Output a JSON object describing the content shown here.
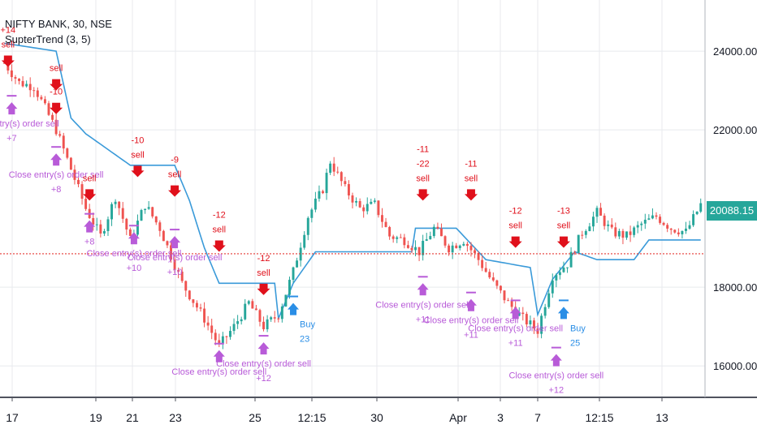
{
  "legend": {
    "symbol_line": "NIFTY BANK, 30, NSE",
    "indicator_line": "SupterTrend (3, 5)"
  },
  "last_price_label": "20088.15",
  "colors": {
    "up": "#26a69a",
    "down": "#ef5350",
    "supertrend": "#3a9ad9",
    "strategy_sell": "#e0101b",
    "strategy_close": "#b85bd8",
    "strategy_buy": "#2a8ee6",
    "grid": "#e8eaee",
    "axis_text": "#131722",
    "price_badge": "#26a69a"
  },
  "chart_data": {
    "type": "candlestick",
    "title": "NIFTY BANK, 30, NSE",
    "indicator": "SupterTrend (3, 5)",
    "ylim": [
      15200,
      25300
    ],
    "y_ticks": [
      "24000.00",
      "22000.00",
      "18000.00",
      "16000.00"
    ],
    "x_tick_labels": [
      "17",
      "19",
      "21",
      "23",
      "25",
      "12:15",
      "30",
      "Apr",
      "3",
      "7",
      "12:15",
      "13"
    ],
    "last_price": 20088.15,
    "current_price_line": 18850,
    "price_keypoints": [
      {
        "i": 0,
        "p": 23700
      },
      {
        "i": 4,
        "p": 23200
      },
      {
        "i": 8,
        "p": 23100
      },
      {
        "i": 14,
        "p": 22000
      },
      {
        "i": 22,
        "p": 20000
      },
      {
        "i": 26,
        "p": 19300
      },
      {
        "i": 30,
        "p": 20300
      },
      {
        "i": 34,
        "p": 19200
      },
      {
        "i": 38,
        "p": 20100
      },
      {
        "i": 42,
        "p": 19500
      },
      {
        "i": 48,
        "p": 18100
      },
      {
        "i": 54,
        "p": 17200
      },
      {
        "i": 58,
        "p": 16500
      },
      {
        "i": 62,
        "p": 17000
      },
      {
        "i": 66,
        "p": 17600
      },
      {
        "i": 70,
        "p": 17000
      },
      {
        "i": 74,
        "p": 17300
      },
      {
        "i": 78,
        "p": 18400
      },
      {
        "i": 82,
        "p": 19800
      },
      {
        "i": 86,
        "p": 20500
      },
      {
        "i": 88,
        "p": 21200
      },
      {
        "i": 92,
        "p": 20500
      },
      {
        "i": 96,
        "p": 20000
      },
      {
        "i": 100,
        "p": 20100
      },
      {
        "i": 104,
        "p": 19300
      },
      {
        "i": 108,
        "p": 19200
      },
      {
        "i": 112,
        "p": 18900
      },
      {
        "i": 116,
        "p": 19500
      },
      {
        "i": 120,
        "p": 19000
      },
      {
        "i": 124,
        "p": 19200
      },
      {
        "i": 128,
        "p": 18700
      },
      {
        "i": 132,
        "p": 18100
      },
      {
        "i": 136,
        "p": 17600
      },
      {
        "i": 140,
        "p": 17200
      },
      {
        "i": 144,
        "p": 16900
      },
      {
        "i": 148,
        "p": 18300
      },
      {
        "i": 152,
        "p": 18600
      },
      {
        "i": 156,
        "p": 19400
      },
      {
        "i": 160,
        "p": 19900
      },
      {
        "i": 164,
        "p": 19400
      },
      {
        "i": 168,
        "p": 19300
      },
      {
        "i": 172,
        "p": 19600
      },
      {
        "i": 176,
        "p": 19800
      },
      {
        "i": 180,
        "p": 19500
      },
      {
        "i": 184,
        "p": 19400
      },
      {
        "i": 188,
        "p": 20100
      }
    ],
    "supertrend": [
      {
        "i": 0,
        "p": 24200
      },
      {
        "i": 14,
        "p": 24000
      },
      {
        "i": 18,
        "p": 22300
      },
      {
        "i": 22,
        "p": 21900
      },
      {
        "i": 34,
        "p": 21100
      },
      {
        "i": 46,
        "p": 21100
      },
      {
        "i": 50,
        "p": 20200
      },
      {
        "i": 54,
        "p": 19000
      },
      {
        "i": 58,
        "p": 18100
      },
      {
        "i": 73,
        "p": 18100
      },
      {
        "i": 74,
        "p": 17200
      },
      {
        "i": 78,
        "p": 18100
      },
      {
        "i": 84,
        "p": 18900
      },
      {
        "i": 110,
        "p": 18900
      },
      {
        "i": 111,
        "p": 19500
      },
      {
        "i": 122,
        "p": 19500
      },
      {
        "i": 130,
        "p": 18700
      },
      {
        "i": 136,
        "p": 18600
      },
      {
        "i": 142,
        "p": 18500
      },
      {
        "i": 144,
        "p": 17300
      },
      {
        "i": 148,
        "p": 18200
      },
      {
        "i": 154,
        "p": 18900
      },
      {
        "i": 160,
        "p": 18700
      },
      {
        "i": 170,
        "p": 18700
      },
      {
        "i": 174,
        "p": 19200
      },
      {
        "i": 188,
        "p": 19200
      }
    ],
    "signals": [
      {
        "side": "sell",
        "i": 1,
        "p": 23600,
        "labels": [
          "+14",
          "sell"
        ]
      },
      {
        "side": "sell",
        "i": 14,
        "p": 23000,
        "labels": [
          "sell"
        ]
      },
      {
        "side": "close",
        "i": 2,
        "p": 22700,
        "labels": [
          "Close entry(s) order sell",
          "+7"
        ]
      },
      {
        "side": "sell",
        "i": 14,
        "p": 22400,
        "labels": [
          "-10"
        ]
      },
      {
        "side": "close",
        "i": 14,
        "p": 21400,
        "labels": [
          "Close entry(s) order sell",
          "+8"
        ]
      },
      {
        "side": "sell",
        "i": 36,
        "p": 20800,
        "labels": [
          "-10",
          "sell"
        ]
      },
      {
        "side": "sell",
        "i": 23,
        "p": 20200,
        "labels": [
          "sell"
        ]
      },
      {
        "side": "close",
        "i": 23,
        "p": 19700,
        "labels": [
          "+8"
        ]
      },
      {
        "side": "sell",
        "i": 46,
        "p": 20300,
        "labels": [
          "-9",
          "sell"
        ]
      },
      {
        "side": "close",
        "i": 35,
        "p": 19400,
        "labels": [
          "Close entry(s) order sell",
          "+10"
        ]
      },
      {
        "side": "close",
        "i": 46,
        "p": 19300,
        "labels": [
          "Close entry(s) order sell",
          "+10"
        ]
      },
      {
        "side": "sell",
        "i": 58,
        "p": 18900,
        "labels": [
          "-12",
          "sell"
        ]
      },
      {
        "side": "sell",
        "i": 70,
        "p": 17800,
        "labels": [
          "-12",
          "sell"
        ]
      },
      {
        "side": "close",
        "i": 58,
        "p": 16400,
        "labels": [
          "Close entry(s) order sell"
        ]
      },
      {
        "side": "close",
        "i": 70,
        "p": 16600,
        "labels": [
          "Close entry(s) order sell",
          "+12"
        ]
      },
      {
        "side": "buy",
        "i": 78,
        "p": 17600,
        "labels": [
          "Buy",
          "23"
        ]
      },
      {
        "side": "sell",
        "i": 113,
        "p": 20200,
        "labels": [
          "-11",
          "-22",
          "sell"
        ]
      },
      {
        "side": "sell",
        "i": 126,
        "p": 20200,
        "labels": [
          "-11",
          "sell"
        ]
      },
      {
        "side": "close",
        "i": 113,
        "p": 18100,
        "labels": [
          "Close entry(s) order sell",
          "+11"
        ]
      },
      {
        "side": "close",
        "i": 126,
        "p": 17700,
        "labels": [
          "Close entry(s) order sell",
          "+11"
        ]
      },
      {
        "side": "sell",
        "i": 138,
        "p": 19000,
        "labels": [
          "-12",
          "sell"
        ]
      },
      {
        "side": "close",
        "i": 138,
        "p": 17500,
        "labels": [
          "Close entry(s) order sell",
          "+11"
        ]
      },
      {
        "side": "sell",
        "i": 151,
        "p": 19000,
        "labels": [
          "-13",
          "sell"
        ]
      },
      {
        "side": "buy",
        "i": 151,
        "p": 17500,
        "labels": [
          "Buy",
          "25"
        ]
      },
      {
        "side": "close",
        "i": 149,
        "p": 16300,
        "labels": [
          "Close entry(s) order sell",
          "+12"
        ]
      }
    ],
    "grid": true
  }
}
